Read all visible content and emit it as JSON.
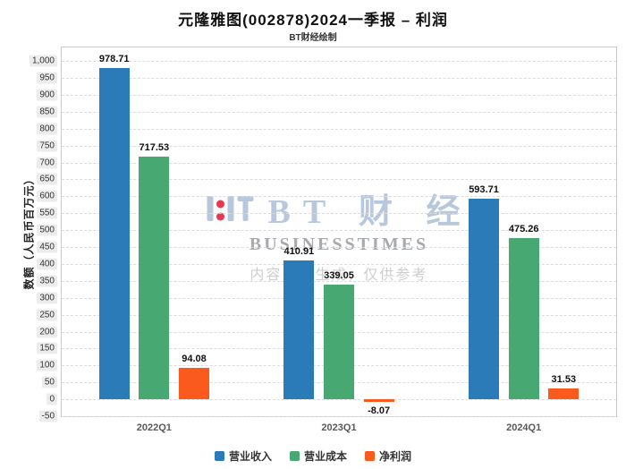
{
  "title": "元隆雅图(002878)2024一季报 – 利润",
  "subtitle": "BT财经绘制",
  "watermark": {
    "brand_cn": "BT 财 经",
    "brand_en": "BUSINESSTIMES",
    "disclaimer": "内容由AI生成，仅供参考"
  },
  "chart_data": {
    "type": "bar",
    "title": "元隆雅图(002878)2024一季报 – 利润",
    "subtitle": "BT财经绘制",
    "categories": [
      "2022Q1",
      "2023Q1",
      "2024Q1"
    ],
    "series": [
      {
        "name": "营业收入",
        "color": "#2b7bb9",
        "values": [
          978.71,
          410.91,
          593.71
        ]
      },
      {
        "name": "营业成本",
        "color": "#47a872",
        "values": [
          717.53,
          339.05,
          475.26
        ]
      },
      {
        "name": "净利润",
        "color": "#fa5a1e",
        "values": [
          94.08,
          -8.07,
          31.53
        ]
      }
    ],
    "xlabel": "",
    "ylabel": "数额（人民币百万元）",
    "ylim": [
      -50,
      1000
    ],
    "ytick_step": 50,
    "grid": true,
    "grid_style": "dashed",
    "legend_position": "bottom",
    "value_labels": true
  }
}
